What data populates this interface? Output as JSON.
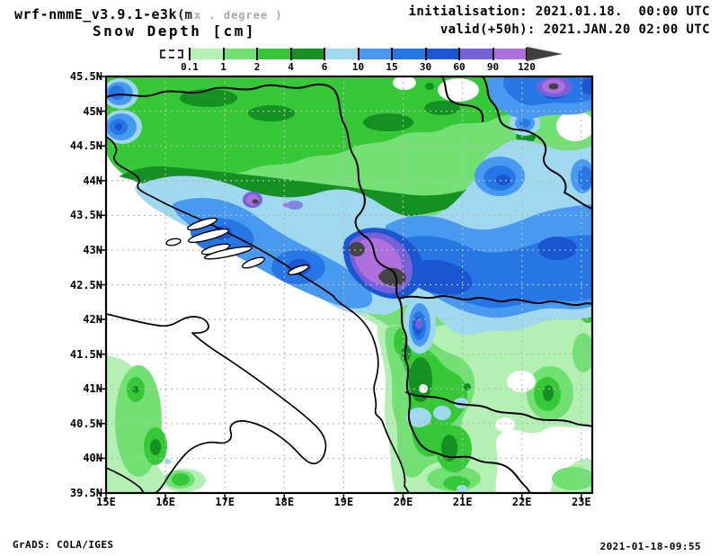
{
  "header": {
    "model_title_bold": "wrf-nmmE_v3.9.1-e3k",
    "model_title_paren": "(m",
    "model_title_gray": "x . degree )",
    "plot_title": "Snow Depth [cm]",
    "init_label": "initialisation: 2021.01.18.  00:00 UTC",
    "valid_label": "valid(+50h): 2021.JAN.20 02:00 UTC"
  },
  "footer": {
    "credit": "GrADS: COLA/IGES",
    "timestamp": "2021-01-18-09:55"
  },
  "chart_data": {
    "type": "heatmap",
    "title": "Snow Depth [cm]",
    "variable": "snow depth",
    "units": "cm",
    "model": "wrf-nmmE_v3.9.1-e3km",
    "initialisation": "2021.01.18. 00:00 UTC",
    "valid": "valid(+50h): 2021.JAN.20 02:00 UTC",
    "region": "Adriatic / Balkans",
    "legend": {
      "levels": [
        "0.1",
        "1",
        "2",
        "4",
        "6",
        "10",
        "15",
        "30",
        "60",
        "90",
        "120"
      ],
      "colors": [
        "#b4f0b4",
        "#73e073",
        "#37c837",
        "#149122",
        "#a0d8ef",
        "#4899f0",
        "#2776e6",
        "#1a55d2",
        "#7562d8",
        "#af6fdc"
      ],
      "overflow_color": "#3f3f3f",
      "underflow_style": "white dashed box below 0.1"
    },
    "x_axis": {
      "ticks": [
        "15E",
        "16E",
        "17E",
        "18E",
        "19E",
        "20E",
        "21E",
        "22E",
        "23E"
      ],
      "range": [
        15,
        23.2
      ]
    },
    "y_axis": {
      "ticks": [
        "45.5N",
        "45N",
        "44.5N",
        "44N",
        "43.5N",
        "43N",
        "42.5N",
        "42N",
        "41.5N",
        "41N",
        "40.5N",
        "40N",
        "39.5N"
      ],
      "range": [
        39.5,
        45.5
      ]
    },
    "grid": "dashed gray, 1 deg lon x 0.5 deg lat",
    "features": [
      "broad 2-6 cm green band across Croatia / N Bosnia / N Serbia (44-45.5N)",
      "15-60 cm blue swath along the Dinaric Alps into E Serbia (43-44N)",
      ">120 cm dark-gray cores over Montenegro / N Albania mountains near 19.2-19.9E, 42.6-43N",
      ">120 cm core in NE Serbia near 22.5E, 45.3N",
      "90-120 cm spot near 17.5E, 43.7N",
      "10-60 cm spot in W Macedonia near 20.3E, 41.9N",
      "patchy 0.1-4 cm over S Italy Apennines and Macedonia / N Greece"
    ]
  }
}
